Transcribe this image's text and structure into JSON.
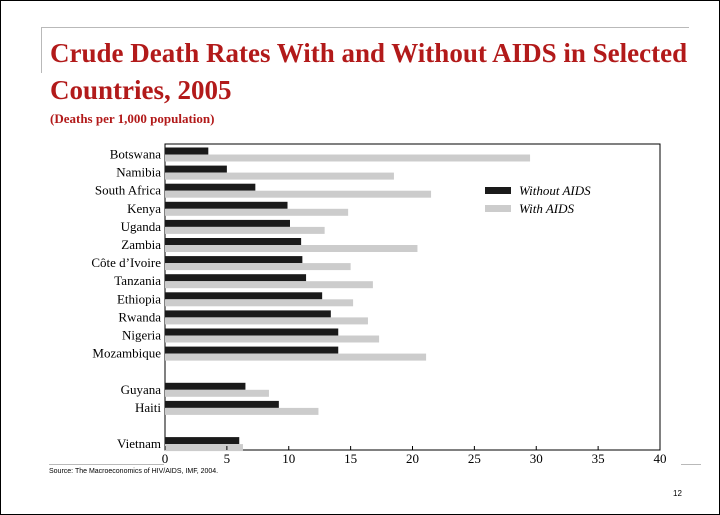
{
  "slide": {
    "title": "Crude Death Rates With and Without AIDS in Selected Countries, 2005",
    "subtitle": "(Deaths per 1,000 population)",
    "source": "Source: The Macroeconomics of HIV/AIDS, IMF, 2004.",
    "page_number": "12"
  },
  "colors": {
    "title": "#b21a1a",
    "without_aids": "#1a1a1a",
    "with_aids": "#cccccc"
  },
  "chart_data": {
    "type": "bar",
    "orientation": "horizontal",
    "title": "",
    "xlabel": "",
    "ylabel": "",
    "xlim": [
      0,
      40
    ],
    "x_ticks": [
      0,
      5,
      10,
      15,
      20,
      25,
      30,
      35,
      40
    ],
    "grid": false,
    "legend_position": "top-right",
    "categories": [
      "Botswana",
      "Namibia",
      "South Africa",
      "Kenya",
      "Uganda",
      "Zambia",
      "Côte d’Ivoire",
      "Tanzania",
      "Ethiopia",
      "Rwanda",
      "Nigeria",
      "Mozambique",
      "",
      "Guyana",
      "Haiti",
      "",
      "Vietnam"
    ],
    "series": [
      {
        "name": "Without AIDS",
        "color": "#1a1a1a",
        "values": [
          3.5,
          5,
          7.3,
          9.9,
          10.1,
          11,
          11.1,
          11.4,
          12.7,
          13.4,
          14,
          14,
          null,
          6.5,
          9.2,
          null,
          6
        ]
      },
      {
        "name": "With AIDS",
        "color": "#cccccc",
        "values": [
          29.5,
          18.5,
          21.5,
          14.8,
          12.9,
          20.4,
          15,
          16.8,
          15.2,
          16.4,
          17.3,
          21.1,
          null,
          8.4,
          12.4,
          null,
          6.3
        ]
      }
    ]
  }
}
